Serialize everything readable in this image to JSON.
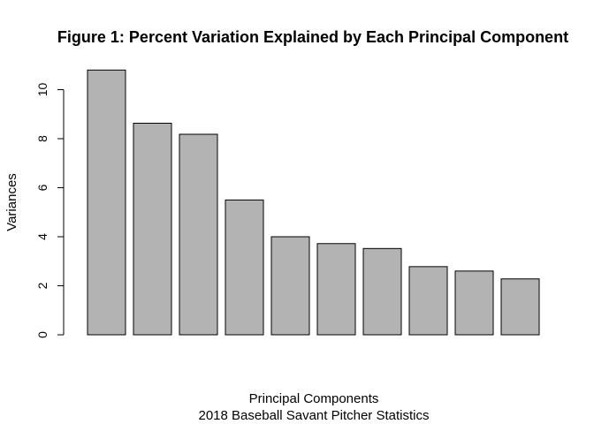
{
  "chart_data": {
    "type": "bar",
    "title": "Figure 1: Percent Variation Explained by Each Principal Component",
    "xlabel": "Principal Components",
    "subtitle": "2018 Baseball Savant Pitcher Statistics",
    "ylabel": "Variances",
    "ylim": [
      0,
      10.8
    ],
    "yticks": [
      "0",
      "2",
      "4",
      "6",
      "8",
      "10"
    ],
    "values": [
      10.8,
      8.63,
      8.18,
      5.5,
      4.0,
      3.72,
      3.52,
      2.78,
      2.6,
      2.28
    ],
    "bar_color": "#b3b3b3",
    "edge_color": "#000000",
    "grid": false,
    "legend": "none"
  }
}
